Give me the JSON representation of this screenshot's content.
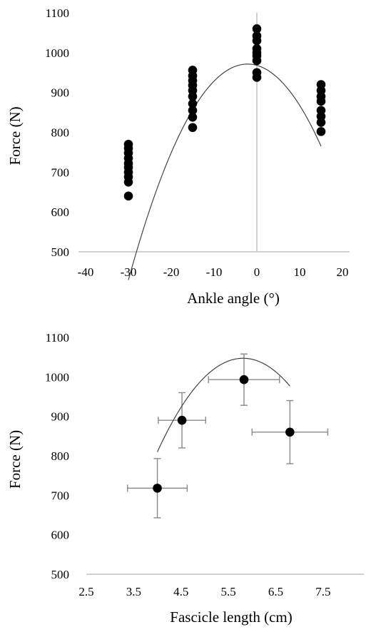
{
  "chart_data": [
    {
      "type": "scatter",
      "title": "",
      "xlabel": "Ankle angle (°)",
      "ylabel": "Force (N)",
      "xlim": [
        -40,
        20
      ],
      "ylim": [
        500,
        1100
      ],
      "x_ticks": [
        "-40",
        "-30",
        "-20",
        "-10",
        "0",
        "10",
        "20"
      ],
      "y_ticks": [
        "500",
        "600",
        "700",
        "800",
        "900",
        "1000",
        "1100"
      ],
      "grid": false,
      "vertical_line_at_x": 0,
      "points": [
        [
          -30,
          640
        ],
        [
          -30,
          675
        ],
        [
          -30,
          688
        ],
        [
          -30,
          700
        ],
        [
          -30,
          712
        ],
        [
          -30,
          722
        ],
        [
          -30,
          735
        ],
        [
          -30,
          748
        ],
        [
          -30,
          760
        ],
        [
          -30,
          770
        ],
        [
          -15,
          812
        ],
        [
          -15,
          838
        ],
        [
          -15,
          855
        ],
        [
          -15,
          872
        ],
        [
          -15,
          890
        ],
        [
          -15,
          905
        ],
        [
          -15,
          918
        ],
        [
          -15,
          930
        ],
        [
          -15,
          942
        ],
        [
          -15,
          956
        ],
        [
          0,
          938
        ],
        [
          0,
          950
        ],
        [
          0,
          980
        ],
        [
          0,
          992
        ],
        [
          0,
          1000
        ],
        [
          0,
          1010
        ],
        [
          0,
          1030
        ],
        [
          0,
          1042
        ],
        [
          0,
          1060
        ],
        [
          15,
          802
        ],
        [
          15,
          825
        ],
        [
          15,
          840
        ],
        [
          15,
          855
        ],
        [
          15,
          878
        ],
        [
          15,
          890
        ],
        [
          15,
          905
        ],
        [
          15,
          920
        ]
      ],
      "trendline": {
        "type": "polynomial-2",
        "x_range": [
          -30,
          15
        ],
        "coefficients": [
          968.1,
          -3.04,
          -0.7
        ]
      }
    },
    {
      "type": "scatter",
      "title": "",
      "xlabel": "Fascicle length (cm)",
      "ylabel": "Force (N)",
      "xlim": [
        2.5,
        8.0
      ],
      "ylim": [
        500,
        1100
      ],
      "x_ticks": [
        "2.5",
        "3.5",
        "4.5",
        "5.5",
        "6.5",
        "7.5"
      ],
      "y_ticks": [
        "500",
        "600",
        "700",
        "800",
        "900",
        "1000",
        "1100"
      ],
      "grid": false,
      "points": [
        {
          "x": 4.0,
          "y": 718,
          "x_err": 0.63,
          "y_err": 75
        },
        {
          "x": 4.52,
          "y": 890,
          "x_err": 0.5,
          "y_err": 70
        },
        {
          "x": 5.83,
          "y": 993,
          "x_err": 0.75,
          "y_err": 65
        },
        {
          "x": 6.8,
          "y": 860,
          "x_err": 0.8,
          "y_err": 80
        }
      ],
      "trendline": {
        "type": "polynomial-2",
        "x_range": [
          4.0,
          6.8
        ],
        "coefficients": [
          1005.6,
          -157.1,
          5.56
        ]
      }
    }
  ]
}
